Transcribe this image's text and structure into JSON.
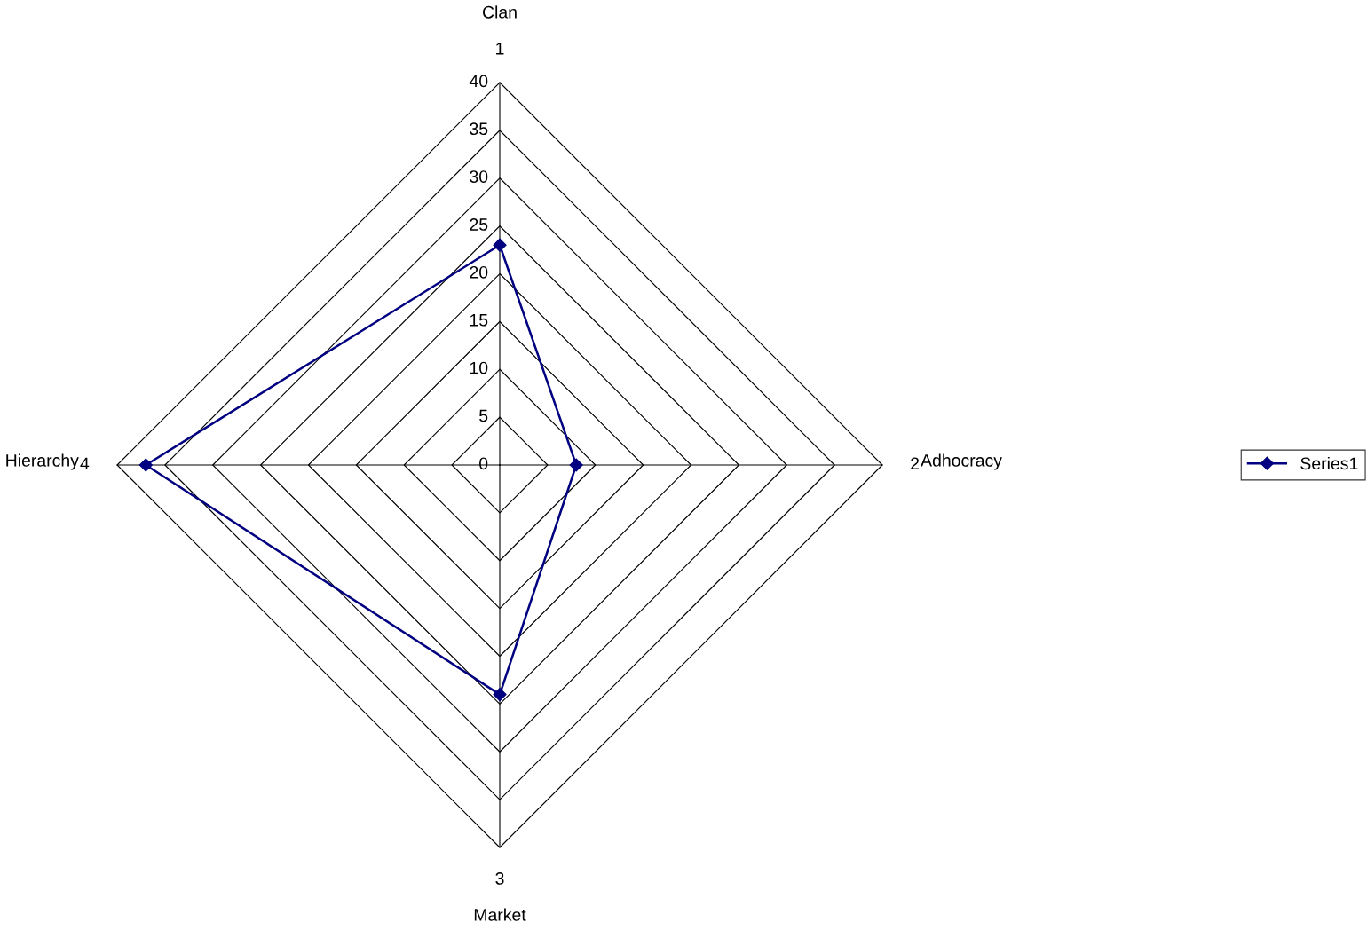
{
  "chart_data": {
    "type": "radar",
    "categories": [
      "1",
      "2",
      "3",
      "4"
    ],
    "series": [
      {
        "name": "Series1",
        "color": "#000080",
        "values": [
          23,
          8,
          24,
          37
        ]
      }
    ],
    "ylim": [
      0,
      40
    ],
    "yticks": [
      0,
      5,
      10,
      15,
      20,
      25,
      30,
      35,
      40
    ],
    "annotations": [
      "Clan",
      "Adhocracy",
      "Market",
      "Hierarchy"
    ],
    "marker": "diamond",
    "legend": "right",
    "grid": true
  }
}
